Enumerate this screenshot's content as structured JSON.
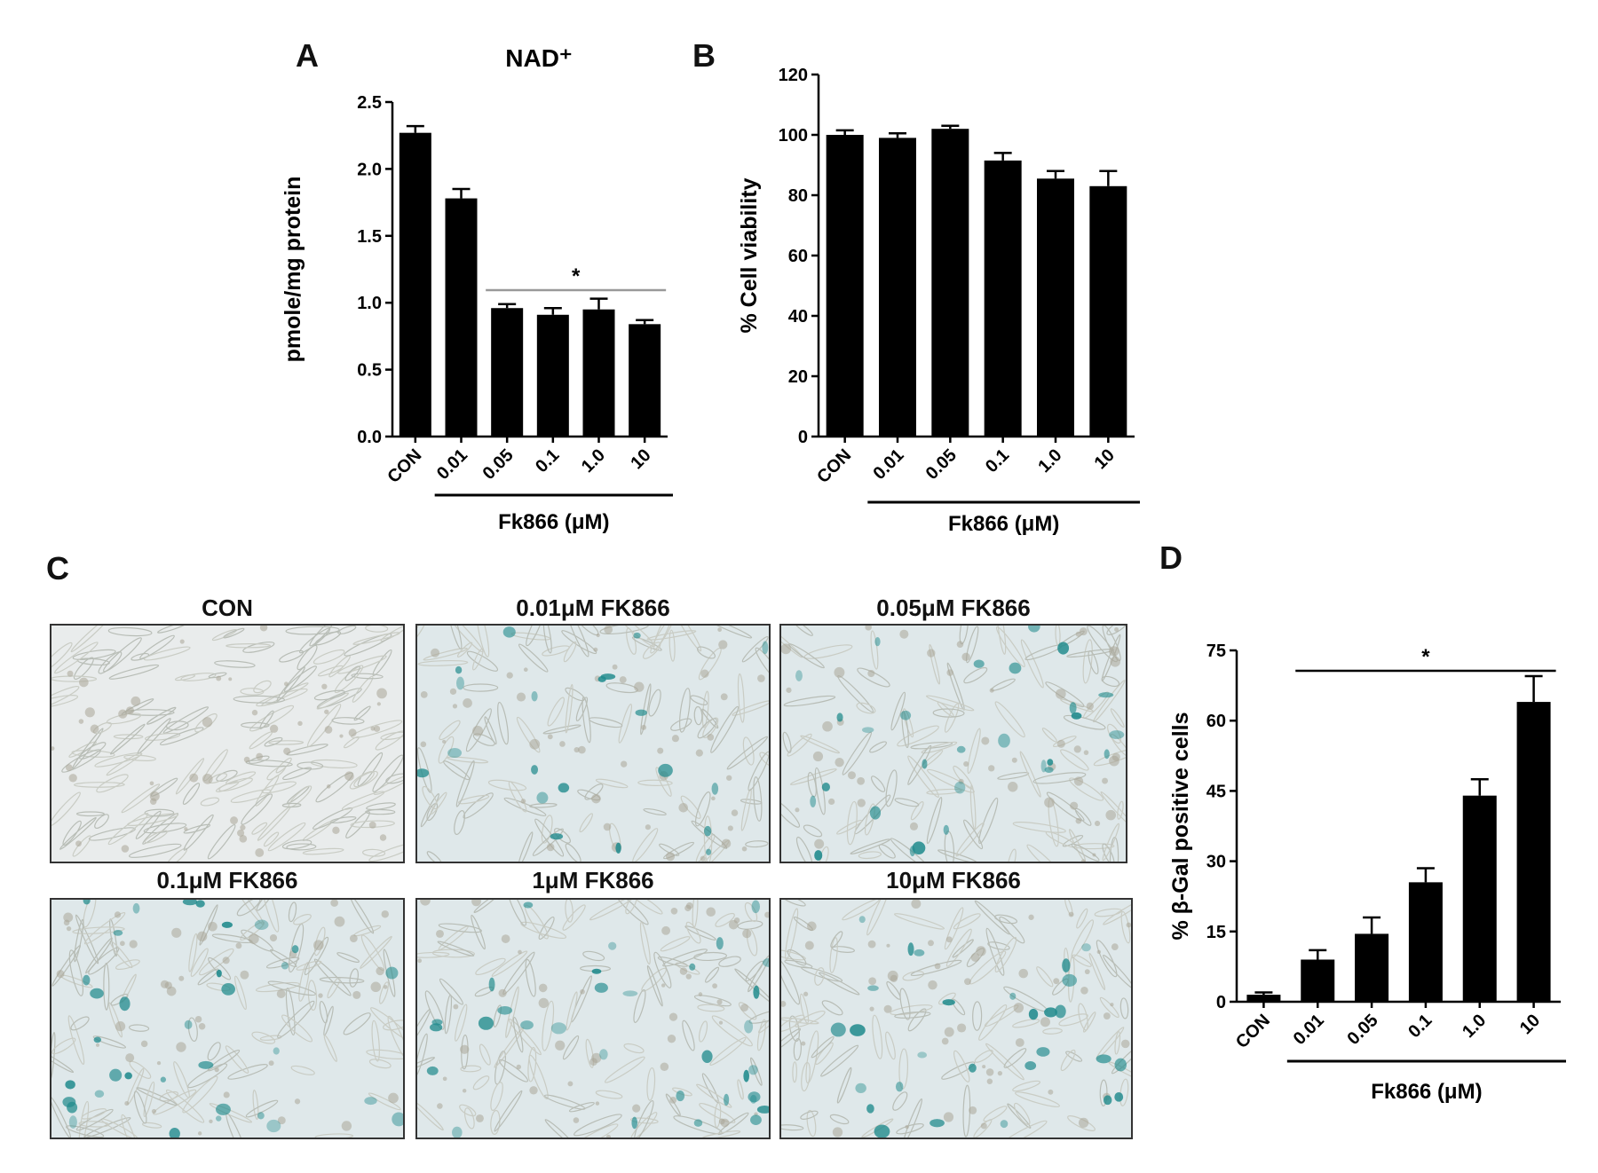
{
  "panel_labels": {
    "a": "A",
    "b": "B",
    "c": "C",
    "d": "D"
  },
  "colors": {
    "bar": "#000000",
    "sigline_a": "#999999",
    "stain": "#1f8a8c",
    "field_bg": "#e6ecee"
  },
  "micrographs": {
    "titles": [
      "CON",
      "0.01μM FK866",
      "0.05μM FK866",
      "0.1μM FK866",
      "1μM FK866",
      "10μM FK866"
    ],
    "stained_cell_counts": [
      0,
      20,
      28,
      34,
      32,
      28
    ]
  },
  "chart_data": [
    {
      "id": "A",
      "type": "bar",
      "title": "NAD⁺",
      "ylabel": "pmole/mg protein",
      "xlabel": "Fk866 (μM)",
      "categories": [
        "CON",
        "0.01",
        "0.05",
        "0.1",
        "1.0",
        "10"
      ],
      "values": [
        2.27,
        1.78,
        0.96,
        0.91,
        0.95,
        0.84
      ],
      "errors": [
        0.05,
        0.07,
        0.03,
        0.05,
        0.08,
        0.03
      ],
      "ylim": [
        0,
        2.5
      ],
      "yticks": [
        "0.0",
        "0.5",
        "1.0",
        "1.5",
        "2.0",
        "2.5"
      ],
      "significance": {
        "label": "*",
        "from": "0.05",
        "to": "10"
      }
    },
    {
      "id": "B",
      "type": "bar",
      "title": "",
      "ylabel": "% Cell viability",
      "xlabel": "Fk866 (μM)",
      "categories": [
        "CON",
        "0.01",
        "0.05",
        "0.1",
        "1.0",
        "10"
      ],
      "values": [
        100,
        99,
        102,
        91.5,
        85.5,
        83
      ],
      "errors": [
        1.5,
        1.5,
        1,
        2.5,
        2.5,
        5
      ],
      "ylim": [
        0,
        120
      ],
      "yticks": [
        "0",
        "20",
        "40",
        "60",
        "80",
        "100",
        "120"
      ]
    },
    {
      "id": "D",
      "type": "bar",
      "title": "",
      "ylabel": "% β-Gal positive cells",
      "xlabel": "Fk866 (μM)",
      "categories": [
        "CON",
        "0.01",
        "0.05",
        "0.1",
        "1.0",
        "10"
      ],
      "values": [
        1.5,
        9,
        14.5,
        25.5,
        44,
        64
      ],
      "errors": [
        0.5,
        2,
        3.5,
        3,
        3.5,
        5.5
      ],
      "ylim": [
        0,
        75
      ],
      "yticks": [
        "0",
        "15",
        "30",
        "45",
        "60",
        "75"
      ],
      "significance": {
        "label": "*",
        "from": "0.01",
        "to": "10"
      }
    }
  ]
}
